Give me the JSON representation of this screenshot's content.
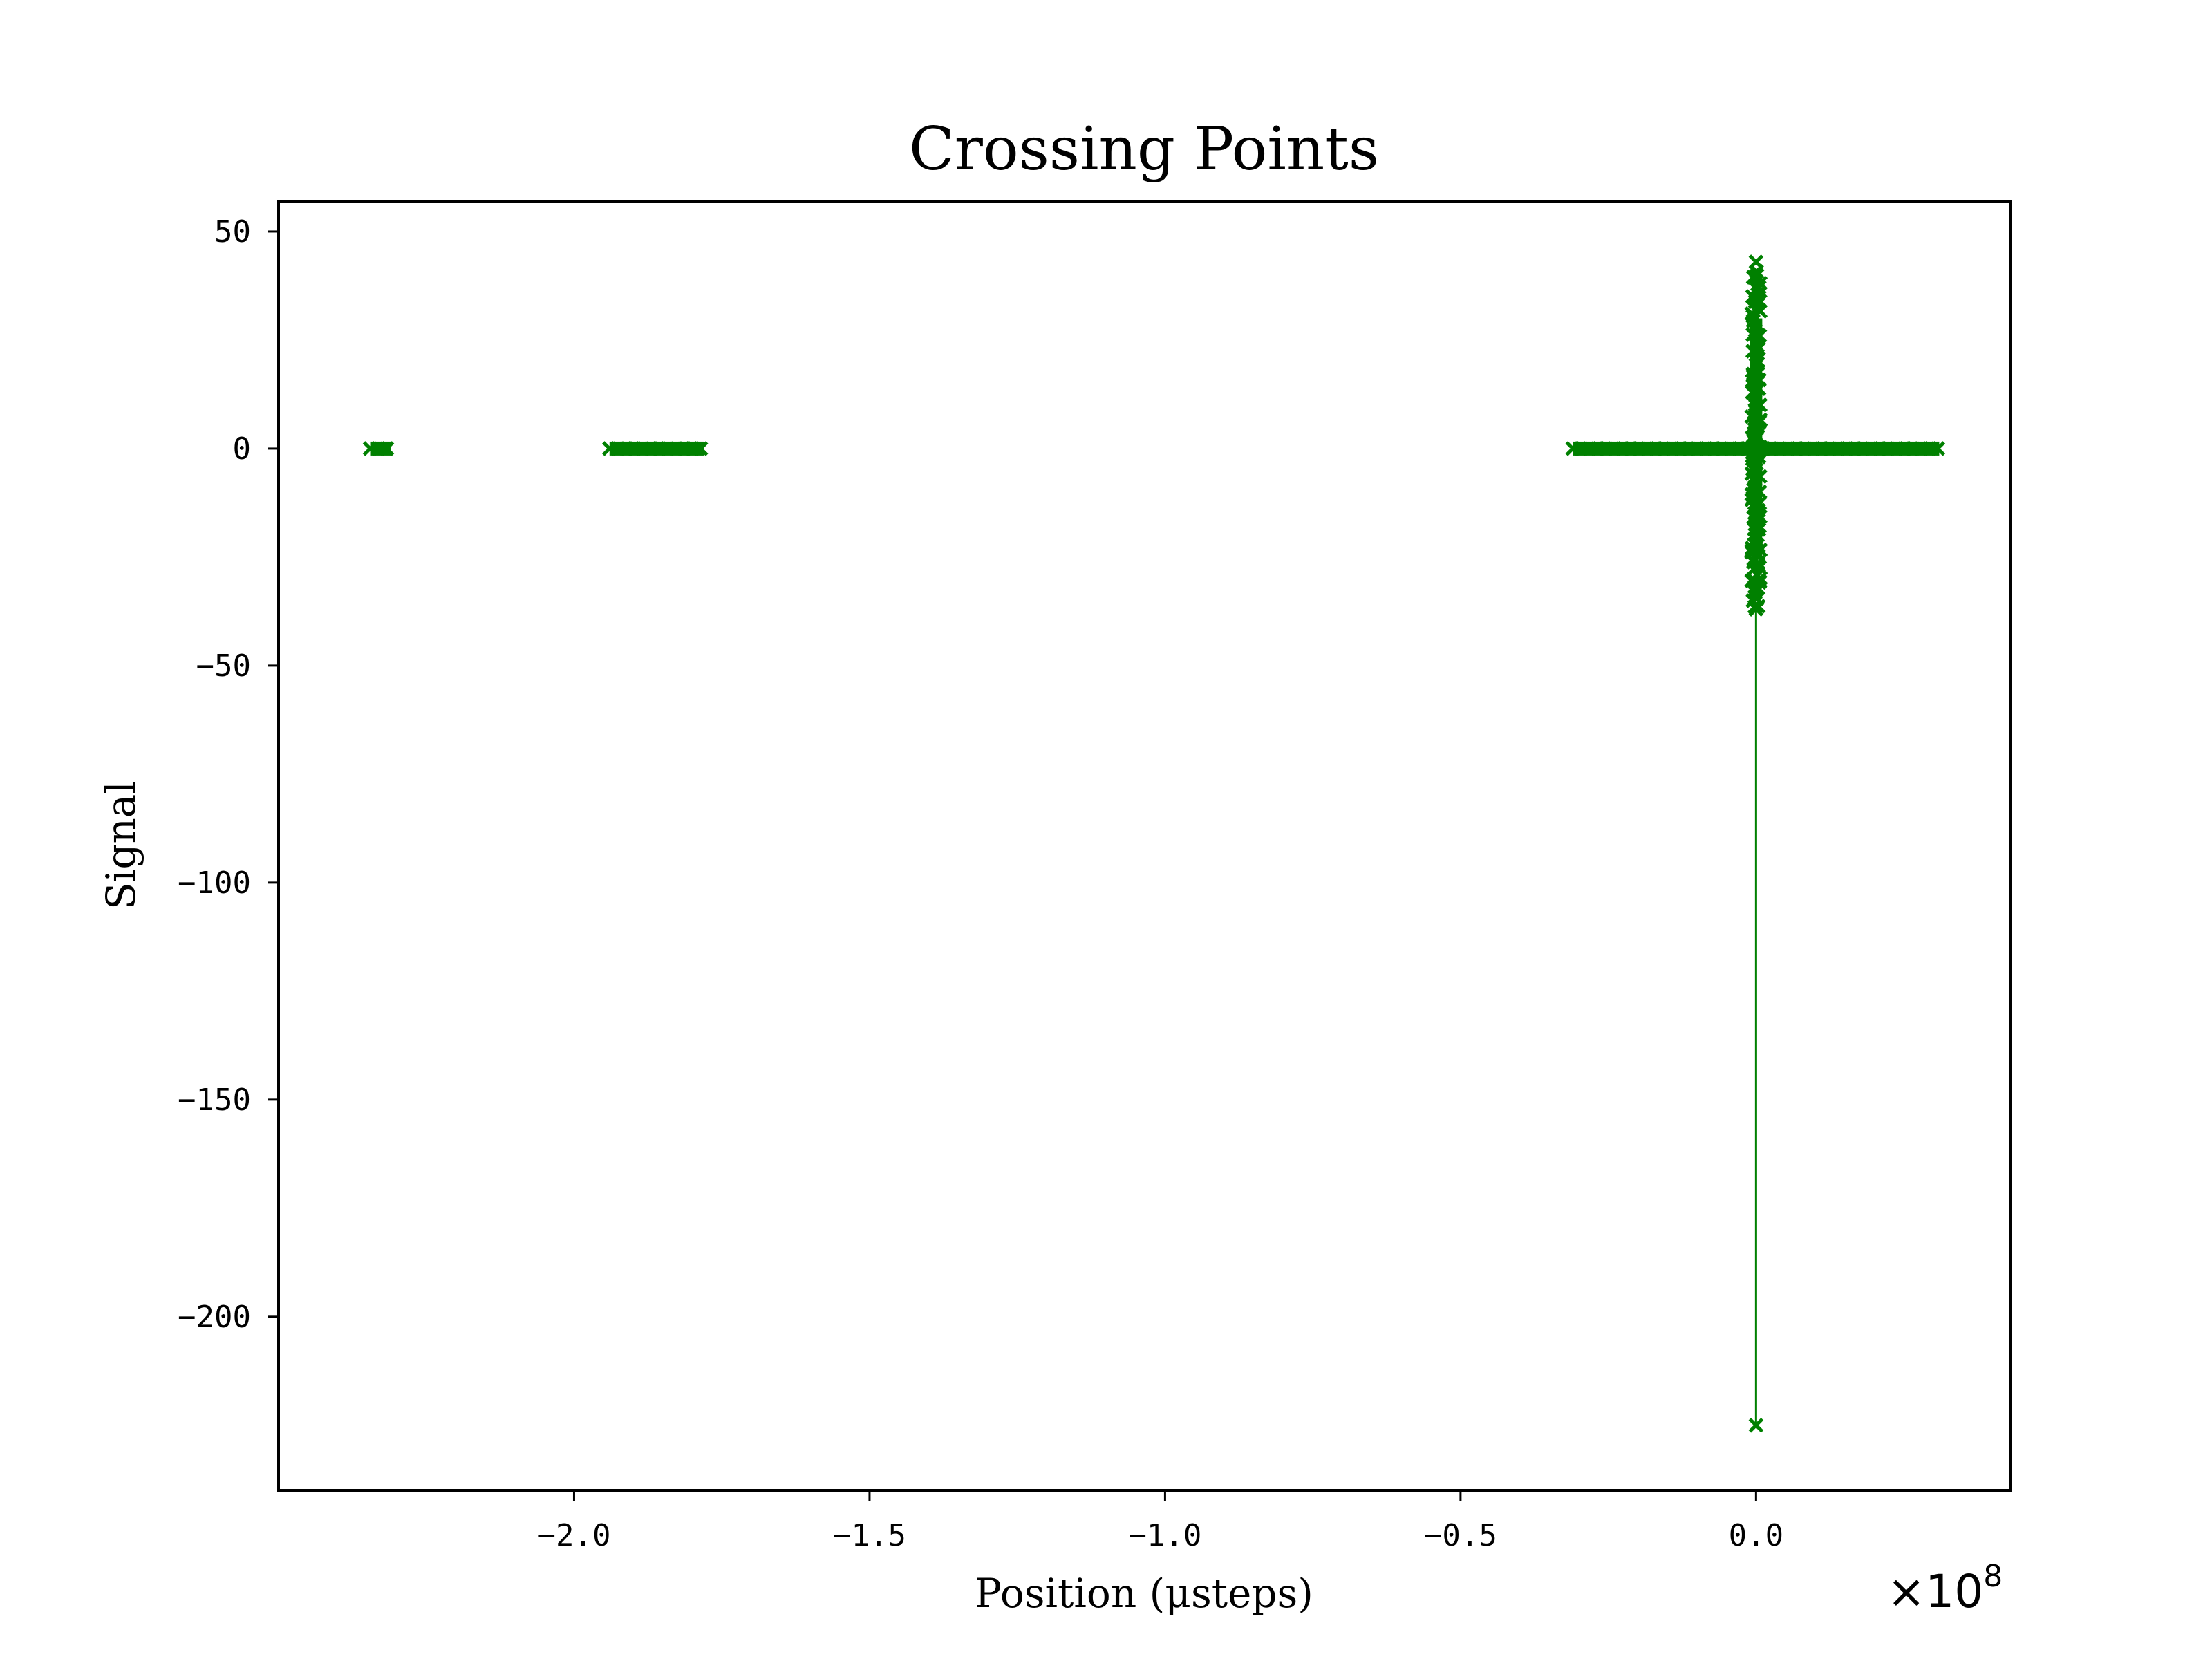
{
  "chart_data": {
    "type": "line",
    "title": "Crossing Points",
    "xlabel": "Position (μsteps)",
    "ylabel": "Signal",
    "x_offset_label": "×10",
    "x_offset_exponent": "8",
    "xlim": [
      -2.5,
      0.43
    ],
    "ylim": [
      -240,
      57
    ],
    "x_scale_note": "x values in units of 1e8 μsteps",
    "xticks": [
      -2.0,
      -1.5,
      -1.0,
      -0.5,
      0.0
    ],
    "xtick_labels": [
      "−2.0",
      "−1.5",
      "−1.0",
      "−0.5",
      "0.0"
    ],
    "yticks": [
      50,
      0,
      -50,
      -100,
      -150,
      -200
    ],
    "ytick_labels": [
      "50",
      "0",
      "−50",
      "−100",
      "−150",
      "−200"
    ],
    "grid": false,
    "color": "#008000",
    "marker": "x",
    "series": [
      {
        "segments": [
          {
            "x_range": [
              -2.345,
              -2.31
            ],
            "y": 0
          },
          {
            "x_range": [
              -1.94,
              -1.78
            ],
            "y": 0
          },
          {
            "x_range": [
              -0.31,
              0.31
            ],
            "y": 0
          }
        ],
        "vertical_cluster": {
          "x": 0.0,
          "y_range": [
            -37,
            43
          ]
        },
        "outlier": {
          "x": 0.0,
          "y": -225
        }
      }
    ]
  }
}
